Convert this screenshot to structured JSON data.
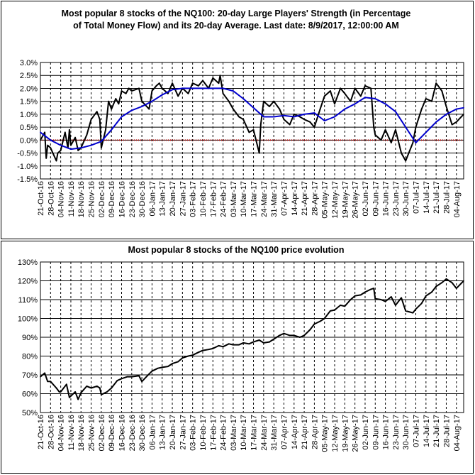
{
  "chart_data": [
    {
      "type": "line",
      "title_lines": [
        "Most popular 8 stocks of the NQ100: 20-day Large Players' Strength (in Percentage",
        "of Total Money Flow) and its 20-day Average. Last date: 8/9/2017, 12:00:00 AM"
      ],
      "xlabel": "",
      "ylabel": "",
      "ylim": [
        -1.5,
        3.0
      ],
      "ytick_values": [
        3.0,
        2.5,
        2.0,
        1.5,
        1.0,
        0.5,
        0.0,
        -0.5,
        -1.0,
        -1.5
      ],
      "ytick_labels": [
        "3.0%",
        "2.5%",
        "2.0%",
        "1.5%",
        "1.0%",
        "0.5%",
        "0.0%",
        "-0.5%",
        "-1.0%",
        "-1.5%"
      ],
      "xlim": [
        "2016-10-21",
        "2017-08-09"
      ],
      "x_tick_dates": [
        "2016-10-21",
        "2016-10-28",
        "2016-11-04",
        "2016-11-11",
        "2016-11-18",
        "2016-11-25",
        "2016-12-02",
        "2016-12-09",
        "2016-12-16",
        "2016-12-23",
        "2016-12-30",
        "2017-01-06",
        "2017-01-13",
        "2017-01-20",
        "2017-01-27",
        "2017-02-03",
        "2017-02-10",
        "2017-02-17",
        "2017-02-24",
        "2017-03-03",
        "2017-03-10",
        "2017-03-17",
        "2017-03-24",
        "2017-03-31",
        "2017-04-07",
        "2017-04-14",
        "2017-04-21",
        "2017-04-28",
        "2017-05-05",
        "2017-05-12",
        "2017-05-19",
        "2017-05-26",
        "2017-06-02",
        "2017-06-09",
        "2017-06-16",
        "2017-06-23",
        "2017-06-30",
        "2017-07-07",
        "2017-07-14",
        "2017-07-21",
        "2017-07-28",
        "2017-08-04"
      ],
      "x_tick_labels": [
        "21-Oct-16",
        "28-Oct-16",
        "04-Nov-16",
        "11-Nov-16",
        "18-Nov-16",
        "25-Nov-16",
        "02-Dec-16",
        "09-Dec-16",
        "16-Dec-16",
        "23-Dec-16",
        "30-Dec-16",
        "06-Jan-17",
        "13-Jan-17",
        "20-Jan-17",
        "27-Jan-17",
        "03-Feb-17",
        "10-Feb-17",
        "17-Feb-17",
        "24-Feb-17",
        "03-Mar-17",
        "10-Mar-17",
        "17-Mar-17",
        "24-Mar-17",
        "31-Mar-17",
        "07-Apr-17",
        "14-Apr-17",
        "21-Apr-17",
        "28-Apr-17",
        "05-May-17",
        "12-May-17",
        "19-May-17",
        "26-May-17",
        "02-Jun-17",
        "09-Jun-17",
        "16-Jun-17",
        "23-Jun-17",
        "30-Jun-17",
        "07-Jul-17",
        "14-Jul-17",
        "21-Jul-17",
        "28-Jul-17",
        "04-Aug-17"
      ],
      "grid": "vertical dashed, horizontal solid",
      "reference_line": {
        "y": 0.0,
        "color": "#c00000",
        "style": "dotted"
      },
      "series": [
        {
          "color": "#000000",
          "x": [
            "2016-10-21",
            "2016-10-24",
            "2016-10-25",
            "2016-10-26",
            "2016-10-28",
            "2016-11-01",
            "2016-11-02",
            "2016-11-04",
            "2016-11-07",
            "2016-11-09",
            "2016-11-10",
            "2016-11-11",
            "2016-11-14",
            "2016-11-16",
            "2016-11-18",
            "2016-11-22",
            "2016-11-25",
            "2016-11-29",
            "2016-12-01",
            "2016-12-02",
            "2016-12-05",
            "2016-12-07",
            "2016-12-09",
            "2016-12-12",
            "2016-12-14",
            "2016-12-16",
            "2016-12-19",
            "2016-12-21",
            "2016-12-23",
            "2016-12-28",
            "2016-12-30",
            "2017-01-04",
            "2017-01-06",
            "2017-01-09",
            "2017-01-11",
            "2017-01-13",
            "2017-01-17",
            "2017-01-20",
            "2017-01-24",
            "2017-01-27",
            "2017-01-31",
            "2017-02-03",
            "2017-02-07",
            "2017-02-10",
            "2017-02-14",
            "2017-02-17",
            "2017-02-21",
            "2017-02-22",
            "2017-02-24",
            "2017-02-28",
            "2017-03-03",
            "2017-03-07",
            "2017-03-10",
            "2017-03-14",
            "2017-03-17",
            "2017-03-21",
            "2017-03-22",
            "2017-03-24",
            "2017-03-28",
            "2017-03-31",
            "2017-04-04",
            "2017-04-07",
            "2017-04-11",
            "2017-04-14",
            "2017-04-18",
            "2017-04-21",
            "2017-04-25",
            "2017-04-28",
            "2017-05-02",
            "2017-05-05",
            "2017-05-09",
            "2017-05-12",
            "2017-05-16",
            "2017-05-19",
            "2017-05-23",
            "2017-05-26",
            "2017-05-30",
            "2017-06-02",
            "2017-06-06",
            "2017-06-08",
            "2017-06-09",
            "2017-06-13",
            "2017-06-16",
            "2017-06-20",
            "2017-06-23",
            "2017-06-27",
            "2017-06-30",
            "2017-07-05",
            "2017-07-07",
            "2017-07-11",
            "2017-07-14",
            "2017-07-18",
            "2017-07-21",
            "2017-07-25",
            "2017-07-28",
            "2017-08-01",
            "2017-08-04",
            "2017-08-09"
          ],
          "y": [
            0.0,
            0.3,
            -0.7,
            -0.2,
            -0.3,
            -0.8,
            -0.5,
            -0.4,
            0.3,
            -0.3,
            0.4,
            -0.2,
            0.1,
            -0.4,
            -0.3,
            0.2,
            0.8,
            1.1,
            0.8,
            -0.3,
            0.4,
            1.5,
            1.2,
            1.6,
            1.4,
            1.9,
            1.8,
            2.0,
            1.9,
            2.0,
            1.5,
            1.2,
            1.9,
            2.1,
            2.2,
            2.0,
            1.8,
            2.2,
            1.7,
            2.0,
            1.8,
            2.2,
            2.1,
            2.3,
            2.0,
            2.4,
            2.2,
            2.5,
            1.8,
            1.5,
            1.2,
            0.9,
            0.8,
            0.3,
            0.4,
            -0.5,
            0.6,
            1.5,
            1.3,
            1.5,
            1.2,
            0.8,
            0.6,
            1.0,
            0.9,
            0.8,
            0.7,
            0.5,
            1.2,
            1.7,
            1.9,
            1.4,
            2.0,
            1.8,
            1.5,
            2.0,
            1.7,
            2.1,
            2.0,
            0.5,
            0.2,
            0.0,
            0.4,
            -0.1,
            0.4,
            -0.5,
            -0.8,
            -0.1,
            0.5,
            1.2,
            1.6,
            1.5,
            2.2,
            1.9,
            1.3,
            0.6,
            0.7,
            1.0
          ]
        },
        {
          "color": "#0000cc",
          "x": [
            "2016-10-21",
            "2016-10-28",
            "2016-11-04",
            "2016-11-11",
            "2016-11-18",
            "2016-11-25",
            "2016-12-02",
            "2016-12-09",
            "2016-12-16",
            "2016-12-23",
            "2016-12-30",
            "2017-01-06",
            "2017-01-13",
            "2017-01-20",
            "2017-01-27",
            "2017-02-03",
            "2017-02-10",
            "2017-02-17",
            "2017-02-24",
            "2017-03-03",
            "2017-03-10",
            "2017-03-17",
            "2017-03-24",
            "2017-03-31",
            "2017-04-07",
            "2017-04-14",
            "2017-04-21",
            "2017-04-28",
            "2017-05-05",
            "2017-05-12",
            "2017-05-19",
            "2017-05-26",
            "2017-06-02",
            "2017-06-09",
            "2017-06-16",
            "2017-06-23",
            "2017-06-30",
            "2017-07-07",
            "2017-07-14",
            "2017-07-21",
            "2017-07-28",
            "2017-08-04",
            "2017-08-09"
          ],
          "y": [
            0.3,
            0.0,
            -0.2,
            -0.35,
            -0.3,
            -0.2,
            -0.05,
            0.4,
            0.9,
            1.15,
            1.3,
            1.5,
            1.75,
            1.95,
            2.0,
            2.0,
            2.0,
            2.0,
            2.0,
            1.9,
            1.6,
            1.25,
            0.9,
            0.9,
            0.95,
            0.9,
            1.0,
            1.05,
            0.75,
            0.9,
            1.2,
            1.4,
            1.65,
            1.6,
            1.4,
            1.1,
            0.5,
            -0.1,
            0.3,
            0.7,
            1.0,
            1.2,
            1.25
          ]
        }
      ]
    },
    {
      "type": "line",
      "title": "Most popular 8 stocks of the NQ100 price evolution",
      "xlabel": "",
      "ylabel": "",
      "ylim": [
        50,
        130
      ],
      "ytick_values": [
        130,
        120,
        110,
        100,
        90,
        80,
        70,
        60,
        50
      ],
      "ytick_labels": [
        "130%",
        "120%",
        "110%",
        "100%",
        "90%",
        "80%",
        "70%",
        "60%",
        "50%"
      ],
      "xlim": [
        "2016-10-21",
        "2017-08-09"
      ],
      "x_tick_dates": [
        "2016-10-21",
        "2016-10-28",
        "2016-11-04",
        "2016-11-11",
        "2016-11-18",
        "2016-11-25",
        "2016-12-02",
        "2016-12-09",
        "2016-12-16",
        "2016-12-23",
        "2016-12-30",
        "2017-01-06",
        "2017-01-13",
        "2017-01-20",
        "2017-01-27",
        "2017-02-03",
        "2017-02-10",
        "2017-02-17",
        "2017-02-24",
        "2017-03-03",
        "2017-03-10",
        "2017-03-17",
        "2017-03-24",
        "2017-03-31",
        "2017-04-07",
        "2017-04-14",
        "2017-04-21",
        "2017-04-28",
        "2017-05-05",
        "2017-05-12",
        "2017-05-19",
        "2017-05-26",
        "2017-06-02",
        "2017-06-09",
        "2017-06-16",
        "2017-06-23",
        "2017-06-30",
        "2017-07-07",
        "2017-07-14",
        "2017-07-21",
        "2017-07-28",
        "2017-08-04"
      ],
      "x_tick_labels": [
        "21-Oct-16",
        "28-Oct-16",
        "04-Nov-16",
        "11-Nov-16",
        "18-Nov-16",
        "25-Nov-16",
        "02-Dec-16",
        "09-Dec-16",
        "16-Dec-16",
        "23-Dec-16",
        "30-Dec-16",
        "06-Jan-17",
        "13-Jan-17",
        "20-Jan-17",
        "27-Jan-17",
        "03-Feb-17",
        "10-Feb-17",
        "17-Feb-17",
        "24-Feb-17",
        "03-Mar-17",
        "10-Mar-17",
        "17-Mar-17",
        "24-Mar-17",
        "31-Mar-17",
        "07-Apr-17",
        "14-Apr-17",
        "21-Apr-17",
        "28-Apr-17",
        "05-May-17",
        "12-May-17",
        "19-May-17",
        "26-May-17",
        "02-Jun-17",
        "09-Jun-17",
        "16-Jun-17",
        "23-Jun-17",
        "30-Jun-17",
        "07-Jul-17",
        "14-Jul-17",
        "21-Jul-17",
        "28-Jul-17",
        "04-Aug-17"
      ],
      "grid": "vertical dashed, horizontal solid",
      "series": [
        {
          "color": "#000000",
          "x": [
            "2016-10-21",
            "2016-10-24",
            "2016-10-26",
            "2016-10-28",
            "2016-11-01",
            "2016-11-03",
            "2016-11-04",
            "2016-11-08",
            "2016-11-10",
            "2016-11-14",
            "2016-11-16",
            "2016-11-18",
            "2016-11-22",
            "2016-11-25",
            "2016-11-29",
            "2016-12-01",
            "2016-12-02",
            "2016-12-06",
            "2016-12-09",
            "2016-12-13",
            "2016-12-16",
            "2016-12-20",
            "2016-12-23",
            "2016-12-28",
            "2016-12-30",
            "2017-01-04",
            "2017-01-06",
            "2017-01-10",
            "2017-01-13",
            "2017-01-17",
            "2017-01-20",
            "2017-01-24",
            "2017-01-27",
            "2017-01-31",
            "2017-02-03",
            "2017-02-07",
            "2017-02-10",
            "2017-02-14",
            "2017-02-17",
            "2017-02-21",
            "2017-02-24",
            "2017-02-28",
            "2017-03-03",
            "2017-03-07",
            "2017-03-10",
            "2017-03-14",
            "2017-03-17",
            "2017-03-21",
            "2017-03-24",
            "2017-03-28",
            "2017-03-31",
            "2017-04-04",
            "2017-04-07",
            "2017-04-11",
            "2017-04-14",
            "2017-04-18",
            "2017-04-21",
            "2017-04-25",
            "2017-04-28",
            "2017-05-02",
            "2017-05-05",
            "2017-05-09",
            "2017-05-12",
            "2017-05-16",
            "2017-05-19",
            "2017-05-23",
            "2017-05-26",
            "2017-05-30",
            "2017-06-02",
            "2017-06-06",
            "2017-06-08",
            "2017-06-09",
            "2017-06-13",
            "2017-06-16",
            "2017-06-20",
            "2017-06-23",
            "2017-06-27",
            "2017-06-30",
            "2017-07-05",
            "2017-07-07",
            "2017-07-11",
            "2017-07-14",
            "2017-07-18",
            "2017-07-21",
            "2017-07-25",
            "2017-07-28",
            "2017-08-01",
            "2017-08-04",
            "2017-08-09"
          ],
          "y": [
            69,
            71,
            66.5,
            66.5,
            63,
            61,
            61,
            65,
            58,
            61,
            57,
            60.5,
            64,
            63,
            64,
            63,
            59.5,
            61,
            63,
            67,
            68,
            69,
            69,
            69.5,
            66.5,
            70.5,
            72,
            73.5,
            74,
            74.5,
            76,
            77,
            79,
            80,
            80.5,
            82,
            83,
            83.5,
            84,
            85.5,
            85,
            86.5,
            86,
            86,
            87,
            86.5,
            87.5,
            88.5,
            87,
            87.5,
            89,
            91,
            92,
            91,
            91,
            90,
            91,
            94,
            97,
            98.5,
            100,
            104,
            104.5,
            107,
            106.5,
            110,
            112,
            112.5,
            114,
            115.5,
            116,
            110.5,
            110,
            109,
            111.5,
            107,
            111,
            104,
            103,
            105,
            108,
            112,
            114,
            117,
            119,
            121,
            119,
            116,
            120
          ]
        }
      ]
    }
  ]
}
